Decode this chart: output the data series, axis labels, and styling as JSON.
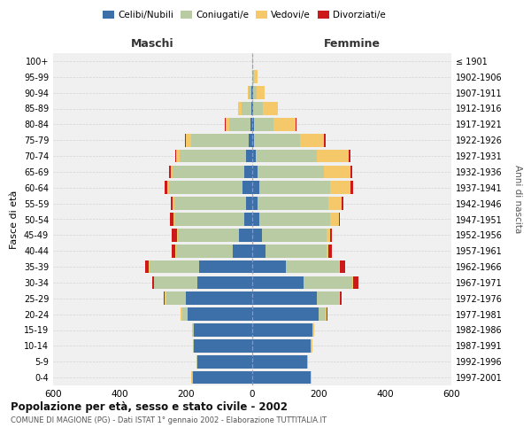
{
  "age_groups": [
    "0-4",
    "5-9",
    "10-14",
    "15-19",
    "20-24",
    "25-29",
    "30-34",
    "35-39",
    "40-44",
    "45-49",
    "50-54",
    "55-59",
    "60-64",
    "65-69",
    "70-74",
    "75-79",
    "80-84",
    "85-89",
    "90-94",
    "95-99",
    "100+"
  ],
  "birth_years": [
    "1997-2001",
    "1992-1996",
    "1987-1991",
    "1982-1986",
    "1977-1981",
    "1972-1976",
    "1967-1971",
    "1962-1966",
    "1957-1961",
    "1952-1956",
    "1947-1951",
    "1942-1946",
    "1937-1941",
    "1932-1936",
    "1927-1931",
    "1922-1926",
    "1917-1921",
    "1912-1916",
    "1907-1911",
    "1902-1906",
    "≤ 1901"
  ],
  "maschi": {
    "celibi": [
      180,
      165,
      175,
      175,
      195,
      200,
      165,
      160,
      60,
      40,
      25,
      20,
      30,
      25,
      20,
      10,
      5,
      3,
      2,
      0,
      0
    ],
    "coniugati": [
      2,
      2,
      3,
      5,
      15,
      60,
      130,
      150,
      170,
      185,
      210,
      215,
      220,
      215,
      200,
      175,
      65,
      30,
      10,
      1,
      0
    ],
    "vedovi": [
      2,
      2,
      2,
      2,
      5,
      5,
      2,
      2,
      2,
      2,
      2,
      5,
      5,
      5,
      10,
      15,
      10,
      10,
      2,
      0,
      0
    ],
    "divorziati": [
      0,
      0,
      0,
      0,
      2,
      2,
      5,
      10,
      10,
      15,
      10,
      5,
      10,
      5,
      2,
      2,
      2,
      0,
      0,
      0,
      0
    ]
  },
  "femmine": {
    "nubili": [
      175,
      165,
      175,
      180,
      200,
      195,
      155,
      100,
      40,
      30,
      20,
      15,
      20,
      15,
      10,
      5,
      5,
      3,
      2,
      1,
      0
    ],
    "coniugate": [
      2,
      2,
      3,
      5,
      20,
      65,
      145,
      160,
      185,
      195,
      215,
      215,
      215,
      200,
      185,
      140,
      60,
      30,
      10,
      5,
      0
    ],
    "vedove": [
      2,
      2,
      2,
      2,
      5,
      5,
      5,
      5,
      5,
      10,
      25,
      40,
      60,
      80,
      95,
      70,
      65,
      45,
      25,
      10,
      2
    ],
    "divorziate": [
      0,
      0,
      0,
      0,
      2,
      5,
      15,
      15,
      10,
      5,
      5,
      5,
      10,
      5,
      5,
      5,
      2,
      0,
      0,
      0,
      0
    ]
  },
  "colors": {
    "celibi": "#3d6fa8",
    "coniugati": "#b8cba3",
    "vedovi": "#f5c96a",
    "divorziati": "#cc1a1a"
  },
  "title": "Popolazione per età, sesso e stato civile - 2002",
  "subtitle": "COMUNE DI MAGIONE (PG) - Dati ISTAT 1° gennaio 2002 - Elaborazione TUTTITALIA.IT",
  "ylabel": "Fasce di età",
  "ylabel_right": "Anni di nascita",
  "xlabel_left": "Maschi",
  "xlabel_right": "Femmine",
  "xlim": 600,
  "bg_color": "#f0f0f0",
  "grid_color": "#cccccc"
}
